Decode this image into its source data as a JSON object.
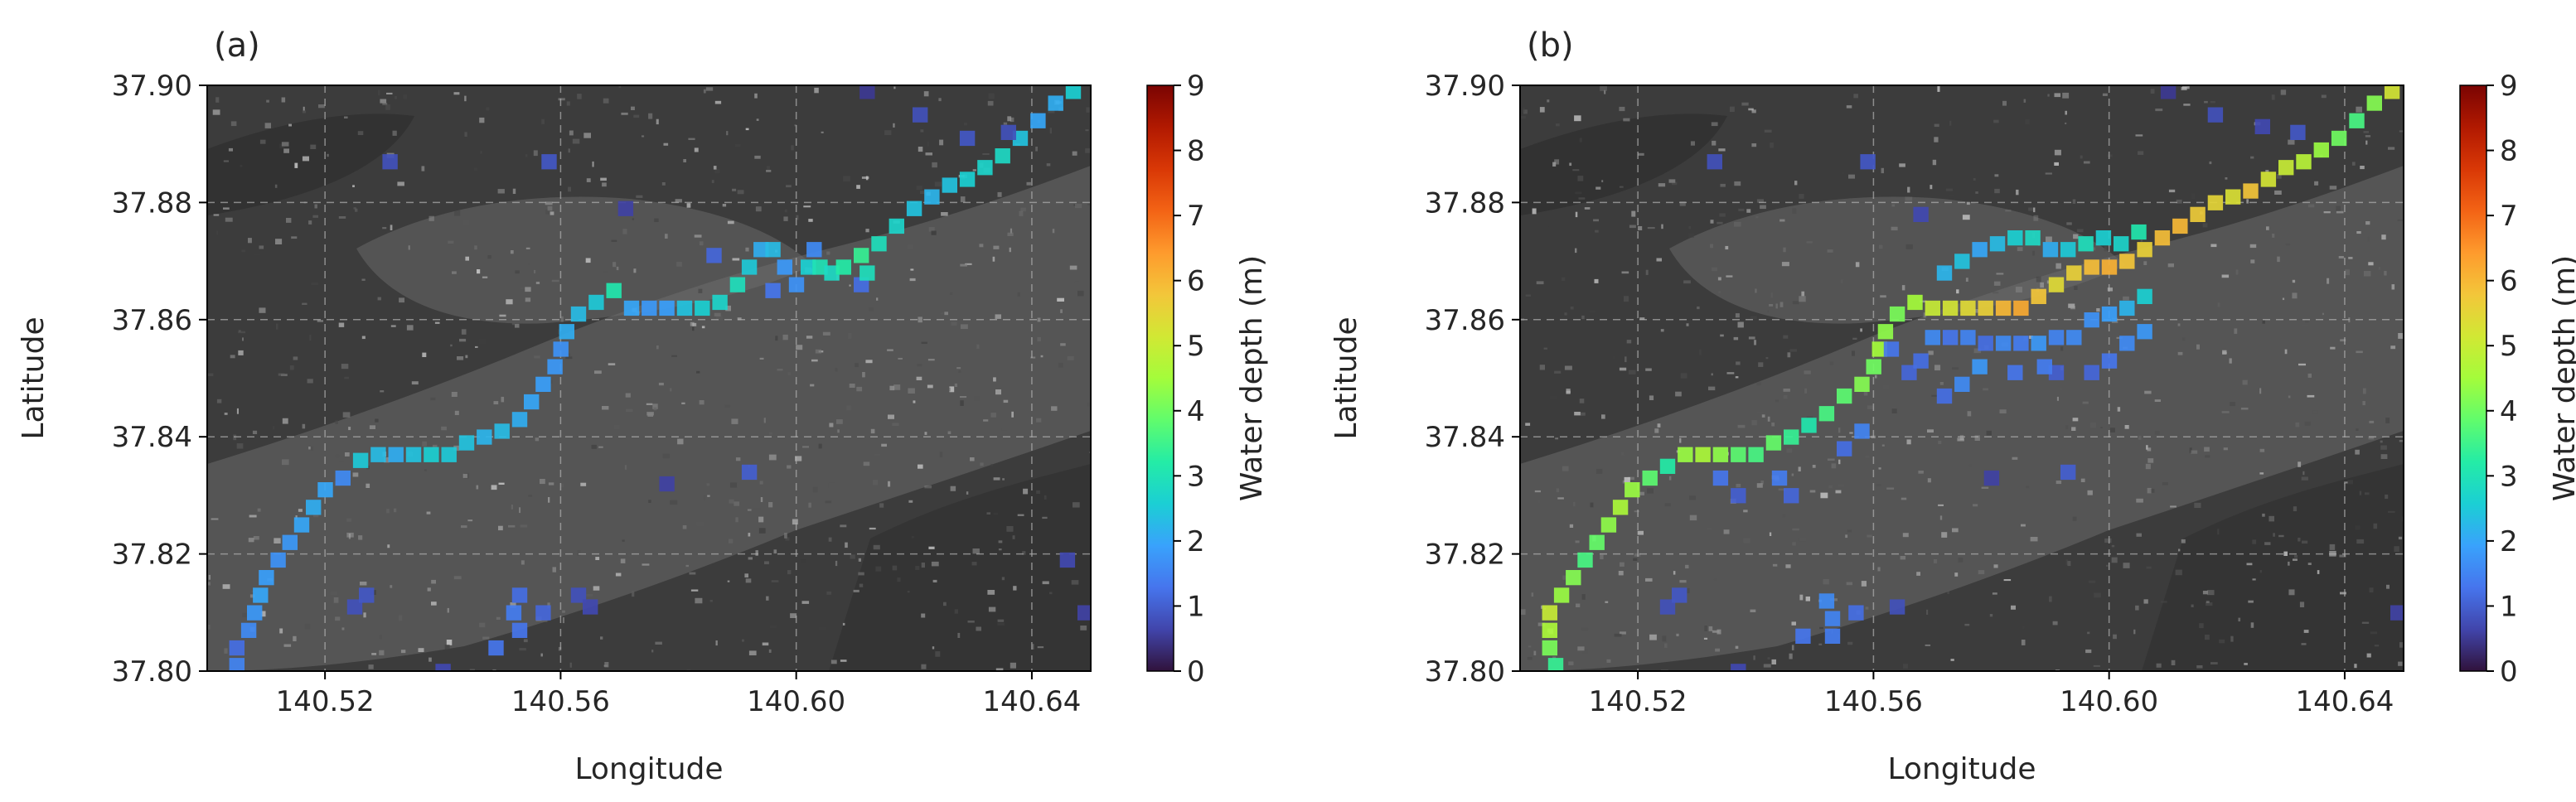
{
  "colors": {
    "colormap": [
      "#30123b",
      "#4145ab",
      "#4675ed",
      "#39a2fc",
      "#1bcfd4",
      "#24eca6",
      "#61fc6c",
      "#a4fc3b",
      "#d1e834",
      "#f3c63a",
      "#fe9b2d",
      "#f36315",
      "#d93806",
      "#b11901",
      "#7a0402"
    ],
    "map_base": "#3c3c3c"
  },
  "chart_data": [
    {
      "type": "heatmap",
      "panel_label": "(a)",
      "xlabel": "Longitude",
      "ylabel": "Latitude",
      "xlim": [
        140.5,
        140.65
      ],
      "ylim": [
        37.8,
        37.9
      ],
      "xticks": [
        "140.52",
        "140.56",
        "140.60",
        "140.64"
      ],
      "xtick_values": [
        140.52,
        140.56,
        140.6,
        140.64
      ],
      "yticks": [
        "37.80",
        "37.82",
        "37.84",
        "37.86",
        "37.88",
        "37.90"
      ],
      "ytick_values": [
        37.8,
        37.82,
        37.84,
        37.86,
        37.88,
        37.9
      ],
      "grid": true,
      "cell_size_deg": 0.0025,
      "colorbar": {
        "label": "Water depth (m)",
        "min": 0,
        "max": 9,
        "ticks": [
          "0",
          "1",
          "2",
          "3",
          "4",
          "5",
          "6",
          "7",
          "8",
          "9"
        ]
      },
      "cells": [
        [
          140.505,
          37.801,
          1.5
        ],
        [
          140.505,
          37.804,
          1.2
        ],
        [
          140.507,
          37.807,
          1.6
        ],
        [
          140.508,
          37.81,
          1.8
        ],
        [
          140.509,
          37.813,
          2.0
        ],
        [
          140.51,
          37.816,
          1.9
        ],
        [
          140.512,
          37.819,
          1.7
        ],
        [
          140.514,
          37.822,
          1.8
        ],
        [
          140.516,
          37.825,
          2.0
        ],
        [
          140.518,
          37.828,
          2.1
        ],
        [
          140.52,
          37.831,
          2.0
        ],
        [
          140.523,
          37.833,
          1.6
        ],
        [
          140.526,
          37.836,
          2.5
        ],
        [
          140.529,
          37.837,
          2.3
        ],
        [
          140.532,
          37.837,
          2.1
        ],
        [
          140.535,
          37.837,
          2.4
        ],
        [
          140.538,
          37.837,
          2.6
        ],
        [
          140.541,
          37.837,
          2.5
        ],
        [
          140.544,
          37.839,
          2.4
        ],
        [
          140.547,
          37.84,
          2.2
        ],
        [
          140.55,
          37.841,
          2.3
        ],
        [
          140.553,
          37.843,
          2.1
        ],
        [
          140.555,
          37.846,
          2.0
        ],
        [
          140.557,
          37.849,
          1.9
        ],
        [
          140.559,
          37.852,
          1.8
        ],
        [
          140.56,
          37.855,
          1.7
        ],
        [
          140.561,
          37.858,
          2.1
        ],
        [
          140.563,
          37.861,
          2.3
        ],
        [
          140.566,
          37.863,
          2.5
        ],
        [
          140.569,
          37.865,
          3.1
        ],
        [
          140.572,
          37.862,
          2.0
        ],
        [
          140.575,
          37.862,
          1.8
        ],
        [
          140.578,
          37.862,
          1.9
        ],
        [
          140.581,
          37.862,
          2.4
        ],
        [
          140.584,
          37.862,
          2.6
        ],
        [
          140.587,
          37.863,
          2.7
        ],
        [
          140.59,
          37.866,
          2.9
        ],
        [
          140.592,
          37.869,
          2.5
        ],
        [
          140.594,
          37.872,
          2.1
        ],
        [
          140.596,
          37.872,
          2.3
        ],
        [
          140.598,
          37.869,
          1.8
        ],
        [
          140.6,
          37.866,
          1.7
        ],
        [
          140.602,
          37.869,
          2.6
        ],
        [
          140.604,
          37.869,
          3.0
        ],
        [
          140.606,
          37.868,
          2.8
        ],
        [
          140.608,
          37.869,
          3.2
        ],
        [
          140.611,
          37.871,
          3.4
        ],
        [
          140.614,
          37.873,
          2.9
        ],
        [
          140.617,
          37.876,
          2.7
        ],
        [
          140.62,
          37.879,
          2.4
        ],
        [
          140.623,
          37.881,
          2.2
        ],
        [
          140.626,
          37.883,
          2.4
        ],
        [
          140.629,
          37.884,
          2.6
        ],
        [
          140.632,
          37.886,
          2.7
        ],
        [
          140.635,
          37.888,
          2.8
        ],
        [
          140.638,
          37.891,
          2.4
        ],
        [
          140.641,
          37.894,
          2.0
        ],
        [
          140.644,
          37.897,
          2.1
        ],
        [
          140.647,
          37.899,
          2.6
        ],
        [
          140.596,
          37.865,
          1.3
        ],
        [
          140.603,
          37.872,
          1.6
        ],
        [
          140.611,
          37.866,
          1.2
        ],
        [
          140.612,
          37.868,
          2.9
        ],
        [
          140.586,
          37.871,
          1.1
        ],
        [
          140.525,
          37.811,
          0.8
        ],
        [
          140.527,
          37.813,
          0.9
        ],
        [
          140.54,
          37.8,
          0.7
        ],
        [
          140.552,
          37.81,
          1.4
        ],
        [
          140.553,
          37.813,
          1.2
        ],
        [
          140.553,
          37.807,
          1.3
        ],
        [
          140.549,
          37.804,
          1.3
        ],
        [
          140.557,
          37.81,
          1.1
        ],
        [
          140.563,
          37.813,
          0.8
        ],
        [
          140.565,
          37.811,
          0.7
        ],
        [
          140.531,
          37.887,
          0.8
        ],
        [
          140.558,
          37.887,
          0.9
        ],
        [
          140.571,
          37.879,
          0.6
        ],
        [
          140.621,
          37.895,
          0.8
        ],
        [
          140.629,
          37.891,
          0.9
        ],
        [
          140.636,
          37.892,
          0.8
        ],
        [
          140.612,
          37.899,
          0.5
        ],
        [
          140.646,
          37.819,
          0.7
        ],
        [
          140.649,
          37.81,
          0.6
        ],
        [
          140.592,
          37.834,
          1.0
        ],
        [
          140.578,
          37.832,
          0.6
        ]
      ]
    },
    {
      "type": "heatmap",
      "panel_label": "(b)",
      "xlabel": "Longitude",
      "ylabel": "Latitude",
      "xlim": [
        140.5,
        140.65
      ],
      "ylim": [
        37.8,
        37.9
      ],
      "xticks": [
        "140.52",
        "140.56",
        "140.60",
        "140.64"
      ],
      "xtick_values": [
        140.52,
        140.56,
        140.6,
        140.64
      ],
      "yticks": [
        "37.80",
        "37.82",
        "37.84",
        "37.86",
        "37.88",
        "37.90"
      ],
      "ytick_values": [
        37.8,
        37.82,
        37.84,
        37.86,
        37.88,
        37.9
      ],
      "grid": true,
      "cell_size_deg": 0.0025,
      "colorbar": {
        "label": "Water depth (m)",
        "min": 0,
        "max": 9,
        "ticks": [
          "0",
          "1",
          "2",
          "3",
          "4",
          "5",
          "6",
          "7",
          "8",
          "9"
        ]
      },
      "cells": [
        [
          140.506,
          37.801,
          3.4
        ],
        [
          140.505,
          37.804,
          4.1
        ],
        [
          140.505,
          37.807,
          4.6
        ],
        [
          140.505,
          37.81,
          5.0
        ],
        [
          140.507,
          37.813,
          4.4
        ],
        [
          140.509,
          37.816,
          4.2
        ],
        [
          140.511,
          37.819,
          3.6
        ],
        [
          140.513,
          37.822,
          3.9
        ],
        [
          140.515,
          37.825,
          4.3
        ],
        [
          140.517,
          37.828,
          4.6
        ],
        [
          140.519,
          37.831,
          4.4
        ],
        [
          140.522,
          37.833,
          3.8
        ],
        [
          140.525,
          37.835,
          3.2
        ],
        [
          140.528,
          37.837,
          4.4
        ],
        [
          140.531,
          37.837,
          4.6
        ],
        [
          140.534,
          37.837,
          4.3
        ],
        [
          140.537,
          37.837,
          3.8
        ],
        [
          140.54,
          37.837,
          3.6
        ],
        [
          140.543,
          37.839,
          3.9
        ],
        [
          140.546,
          37.84,
          3.4
        ],
        [
          140.549,
          37.842,
          3.1
        ],
        [
          140.552,
          37.844,
          3.6
        ],
        [
          140.555,
          37.847,
          3.8
        ],
        [
          140.558,
          37.849,
          4.2
        ],
        [
          140.56,
          37.852,
          4.0
        ],
        [
          140.561,
          37.855,
          4.5
        ],
        [
          140.562,
          37.858,
          4.3
        ],
        [
          140.564,
          37.861,
          4.1
        ],
        [
          140.567,
          37.863,
          4.5
        ],
        [
          140.57,
          37.862,
          5.0
        ],
        [
          140.573,
          37.862,
          5.2
        ],
        [
          140.576,
          37.862,
          5.4
        ],
        [
          140.579,
          37.862,
          5.6
        ],
        [
          140.582,
          37.862,
          6.0
        ],
        [
          140.585,
          37.862,
          6.2
        ],
        [
          140.588,
          37.864,
          5.8
        ],
        [
          140.591,
          37.866,
          5.4
        ],
        [
          140.594,
          37.868,
          5.6
        ],
        [
          140.597,
          37.869,
          5.9
        ],
        [
          140.6,
          37.869,
          6.1
        ],
        [
          140.603,
          37.87,
          5.8
        ],
        [
          140.606,
          37.872,
          5.6
        ],
        [
          140.609,
          37.874,
          5.9
        ],
        [
          140.612,
          37.876,
          6.0
        ],
        [
          140.615,
          37.878,
          5.7
        ],
        [
          140.618,
          37.88,
          5.5
        ],
        [
          140.621,
          37.881,
          5.3
        ],
        [
          140.624,
          37.882,
          5.8
        ],
        [
          140.627,
          37.884,
          5.2
        ],
        [
          140.63,
          37.886,
          5.0
        ],
        [
          140.633,
          37.887,
          4.8
        ],
        [
          140.636,
          37.889,
          4.4
        ],
        [
          140.639,
          37.891,
          4.0
        ],
        [
          140.642,
          37.894,
          3.6
        ],
        [
          140.645,
          37.897,
          4.2
        ],
        [
          140.648,
          37.899,
          5.2
        ],
        [
          140.572,
          37.868,
          2.2
        ],
        [
          140.575,
          37.87,
          2.4
        ],
        [
          140.578,
          37.872,
          2.0
        ],
        [
          140.581,
          37.873,
          2.3
        ],
        [
          140.584,
          37.874,
          2.6
        ],
        [
          140.587,
          37.874,
          2.8
        ],
        [
          140.59,
          37.872,
          2.1
        ],
        [
          140.593,
          37.872,
          2.5
        ],
        [
          140.596,
          37.873,
          2.9
        ],
        [
          140.599,
          37.874,
          2.6
        ],
        [
          140.602,
          37.873,
          2.7
        ],
        [
          140.605,
          37.875,
          3.1
        ],
        [
          140.57,
          37.857,
          1.6
        ],
        [
          140.573,
          37.857,
          1.3
        ],
        [
          140.576,
          37.857,
          1.5
        ],
        [
          140.579,
          37.856,
          1.2
        ],
        [
          140.582,
          37.856,
          1.6
        ],
        [
          140.585,
          37.856,
          1.4
        ],
        [
          140.588,
          37.856,
          1.8
        ],
        [
          140.591,
          37.857,
          1.5
        ],
        [
          140.594,
          37.857,
          1.6
        ],
        [
          140.597,
          37.86,
          1.7
        ],
        [
          140.6,
          37.861,
          1.9
        ],
        [
          140.603,
          37.862,
          2.2
        ],
        [
          140.606,
          37.864,
          2.6
        ],
        [
          140.6,
          37.853,
          1.3
        ],
        [
          140.603,
          37.856,
          1.6
        ],
        [
          140.606,
          37.858,
          1.8
        ],
        [
          140.597,
          37.851,
          1.1
        ],
        [
          140.591,
          37.851,
          1.0
        ],
        [
          140.563,
          37.855,
          1.3
        ],
        [
          140.566,
          37.851,
          1.1
        ],
        [
          140.568,
          37.853,
          1.2
        ],
        [
          140.572,
          37.847,
          1.2
        ],
        [
          140.575,
          37.849,
          1.6
        ],
        [
          140.578,
          37.852,
          1.8
        ],
        [
          140.584,
          37.851,
          1.3
        ],
        [
          140.589,
          37.852,
          1.4
        ],
        [
          140.555,
          37.838,
          1.2
        ],
        [
          140.558,
          37.841,
          1.5
        ],
        [
          140.534,
          37.833,
          1.3
        ],
        [
          140.537,
          37.83,
          1.0
        ],
        [
          140.544,
          37.833,
          1.4
        ],
        [
          140.546,
          37.83,
          1.1
        ],
        [
          140.525,
          37.811,
          0.8
        ],
        [
          140.527,
          37.813,
          0.9
        ],
        [
          140.537,
          37.8,
          0.7
        ],
        [
          140.552,
          37.812,
          1.6
        ],
        [
          140.553,
          37.809,
          1.5
        ],
        [
          140.553,
          37.806,
          1.4
        ],
        [
          140.548,
          37.806,
          1.3
        ],
        [
          140.557,
          37.81,
          1.2
        ],
        [
          140.564,
          37.811,
          0.8
        ],
        [
          140.533,
          37.887,
          0.8
        ],
        [
          140.559,
          37.887,
          0.9
        ],
        [
          140.568,
          37.878,
          0.7
        ],
        [
          140.618,
          37.895,
          0.8
        ],
        [
          140.626,
          37.893,
          0.7
        ],
        [
          140.632,
          37.892,
          0.9
        ],
        [
          140.61,
          37.899,
          0.5
        ],
        [
          140.649,
          37.81,
          0.6
        ],
        [
          140.593,
          37.834,
          1.0
        ],
        [
          140.58,
          37.833,
          0.6
        ]
      ]
    }
  ]
}
